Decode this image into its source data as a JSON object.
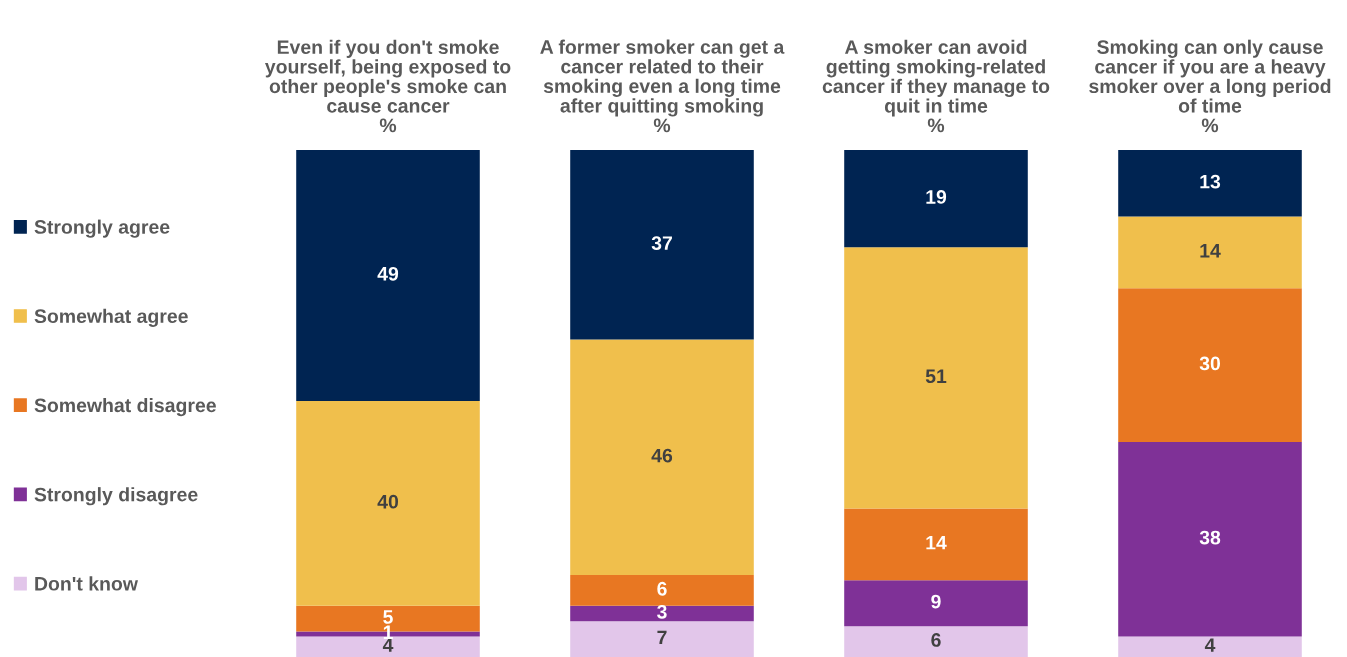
{
  "chart_data": {
    "type": "bar",
    "stacked": true,
    "data_labels": true,
    "legend": "left",
    "grid": false,
    "categories": [
      "Even if you don't smoke\nyourself, being exposed to\nother people's smoke can\ncause cancer\n%",
      "A former smoker can get a\ncancer related to their\nsmoking even a long time\nafter quitting smoking\n%",
      "A smoker can avoid\ngetting smoking-related\ncancer if they manage to\nquit in time\n%",
      "Smoking can only cause\ncancer if you are a heavy\nsmoker over a long period\nof time\n%"
    ],
    "series": [
      {
        "name": "Don't know",
        "color": "#e2c6ea",
        "values": [
          4,
          7,
          6,
          4
        ]
      },
      {
        "name": "Strongly disagree",
        "color": "#7f3197",
        "values": [
          1,
          3,
          9,
          38
        ]
      },
      {
        "name": "Somewhat disagree",
        "color": "#e87722",
        "values": [
          5,
          6,
          14,
          30
        ]
      },
      {
        "name": "Somewhat agree",
        "color": "#f0bf4c",
        "values": [
          40,
          46,
          51,
          14
        ]
      },
      {
        "name": "Strongly agree",
        "color": "#002452",
        "values": [
          49,
          37,
          19,
          13
        ]
      }
    ]
  }
}
